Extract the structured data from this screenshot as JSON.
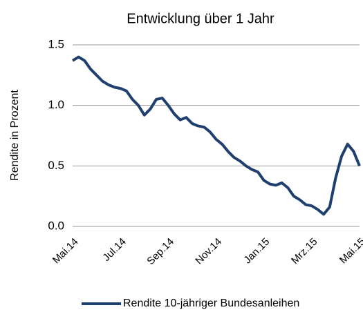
{
  "chart_data": {
    "type": "line",
    "title": "Entwicklung über 1 Jahr",
    "y_label": "Rendite in Prozent",
    "categories": [
      "Mai.14",
      null,
      null,
      null,
      null,
      null,
      null,
      null,
      "Jul.14",
      null,
      null,
      null,
      null,
      null,
      null,
      null,
      "Sep.14",
      null,
      null,
      null,
      null,
      null,
      null,
      null,
      "Nov.14",
      null,
      null,
      null,
      null,
      null,
      null,
      null,
      "Jan.15",
      null,
      null,
      null,
      null,
      null,
      null,
      null,
      "Mrz.15",
      null,
      null,
      null,
      null,
      null,
      null,
      null,
      "Mai.15"
    ],
    "series": [
      {
        "name": "Rendite 10-jähriger Bundesanleihen",
        "color": "#1f3f6e",
        "values": [
          1.37,
          1.4,
          1.37,
          1.3,
          1.25,
          1.2,
          1.17,
          1.15,
          1.14,
          1.12,
          1.05,
          1.0,
          0.92,
          0.97,
          1.05,
          1.06,
          1.0,
          0.93,
          0.88,
          0.9,
          0.85,
          0.83,
          0.82,
          0.78,
          0.72,
          0.68,
          0.62,
          0.57,
          0.54,
          0.5,
          0.47,
          0.45,
          0.38,
          0.35,
          0.34,
          0.36,
          0.32,
          0.25,
          0.22,
          0.18,
          0.17,
          0.14,
          0.1,
          0.16,
          0.4,
          0.58,
          0.68,
          0.62,
          0.5
        ]
      }
    ],
    "ylim": [
      0,
      1.5
    ],
    "yticks": [
      {
        "value": 0,
        "label": "0.0"
      },
      0.5,
      {
        "value": 1,
        "label": "1.0"
      },
      1.5
    ],
    "grid": true,
    "legend": "bottom"
  }
}
